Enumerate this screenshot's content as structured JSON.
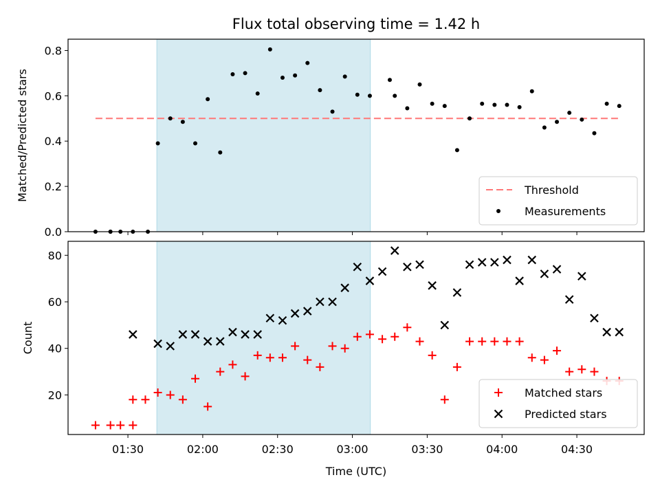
{
  "chart_data": [
    {
      "type": "scatter",
      "title": "Flux total observing time = 1.42 h",
      "xlabel": "",
      "ylabel": "Matched/Predicted stars",
      "ylim": [
        0,
        0.85
      ],
      "yticks": [
        0.0,
        0.2,
        0.4,
        0.6,
        0.8
      ],
      "ytick_labels": [
        "0.0",
        "0.2",
        "0.4",
        "0.6",
        "0.8"
      ],
      "x_unit": "minutes after 00:00 UTC",
      "xlim": [
        78,
        193.5
      ],
      "shaded_span": [
        95.8,
        138.6
      ],
      "shade_color": "#add8e6",
      "legend_position": "lower right",
      "threshold": {
        "name": "Threshold",
        "value": 0.5,
        "x_range": [
          83.5,
          188.5
        ],
        "color": "#ff7777"
      },
      "series": [
        {
          "name": "Measurements",
          "color": "#000000",
          "x": [
            83.5,
            86.5,
            88.5,
            91,
            94,
            86.5,
            96,
            98.5,
            101,
            103.5,
            106,
            108.5,
            111,
            113.5,
            116,
            118.5,
            121,
            123.5,
            126,
            128.5,
            131,
            133.5,
            136,
            138.5,
            142.5,
            143.5,
            146,
            148.5,
            151,
            153.5,
            156,
            158.5,
            161,
            163.5,
            166,
            168.5,
            171,
            173.5,
            176,
            178.5,
            181,
            183.5,
            186,
            188.5
          ],
          "y": [
            0.0,
            0.0,
            0.0,
            0.0,
            0.0,
            0.0,
            0.39,
            0.5,
            0.485,
            0.39,
            0.585,
            0.35,
            0.695,
            0.7,
            0.61,
            0.805,
            0.68,
            0.69,
            0.745,
            0.625,
            0.53,
            0.685,
            0.605,
            0.6,
            0.67,
            0.6,
            0.545,
            0.65,
            0.565,
            0.555,
            0.36,
            0.5,
            0.565,
            0.56,
            0.56,
            0.55,
            0.62,
            0.46,
            0.485,
            0.525,
            0.495,
            0.435,
            0.565,
            0.555
          ]
        }
      ]
    },
    {
      "type": "scatter",
      "title": "",
      "xlabel": "Time (UTC)",
      "ylabel": "Count",
      "ylim": [
        3,
        86
      ],
      "yticks": [
        20,
        40,
        60,
        80
      ],
      "ytick_labels": [
        "20",
        "40",
        "60",
        "80"
      ],
      "x_unit": "minutes after 00:00 UTC",
      "xlim": [
        78,
        193.5
      ],
      "xticks": [
        90,
        105,
        120,
        135,
        150,
        165,
        180
      ],
      "xtick_labels": [
        "01:30",
        "02:00",
        "02:30",
        "03:00",
        "03:30",
        "04:00",
        "04:30"
      ],
      "shaded_span": [
        95.8,
        138.6
      ],
      "shade_color": "#add8e6",
      "legend_position": "lower right",
      "series": [
        {
          "name": "Matched stars",
          "marker": "+",
          "color": "#ff0000",
          "x": [
            83.5,
            86.5,
            88.5,
            91,
            91,
            93.5,
            96,
            98.5,
            101,
            103.5,
            106,
            108.5,
            111,
            113.5,
            116,
            118.5,
            121,
            123.5,
            126,
            128.5,
            131,
            133.5,
            136,
            138.5,
            141,
            143.5,
            146,
            148.5,
            151,
            153.5,
            156,
            158.5,
            161,
            163.5,
            166,
            168.5,
            171,
            173.5,
            176,
            178.5,
            181,
            183.5,
            186,
            188.5
          ],
          "y": [
            7,
            7,
            7,
            7,
            18,
            18,
            21,
            20,
            18,
            27,
            15,
            30,
            33,
            28,
            37,
            36,
            36,
            41,
            35,
            32,
            41,
            40,
            45,
            46,
            44,
            45,
            49,
            43,
            37,
            18,
            32,
            43,
            43,
            43,
            43,
            43,
            36,
            35,
            39,
            30,
            31,
            30,
            26,
            26
          ],
          "x_note": ""
        },
        {
          "name": "Predicted stars",
          "marker": "x",
          "color": "#000000",
          "x": [
            91,
            96,
            98.5,
            101,
            103.5,
            106,
            108.5,
            111,
            113.5,
            116,
            118.5,
            121,
            123.5,
            126,
            128.5,
            131,
            133.5,
            136,
            138.5,
            141,
            143.5,
            146,
            148.5,
            151,
            153.5,
            156,
            158.5,
            161,
            163.5,
            166,
            168.5,
            171,
            173.5,
            176,
            178.5,
            181,
            183.5,
            186,
            188.5
          ],
          "y": [
            46,
            42,
            41,
            46,
            46,
            43,
            43,
            47,
            46,
            46,
            53,
            52,
            55,
            56,
            60,
            60,
            66,
            75,
            69,
            73,
            82,
            75,
            76,
            67,
            50,
            64,
            76,
            77,
            77,
            78,
            69,
            78,
            72,
            74,
            61,
            71,
            53,
            47,
            47
          ]
        }
      ]
    }
  ]
}
